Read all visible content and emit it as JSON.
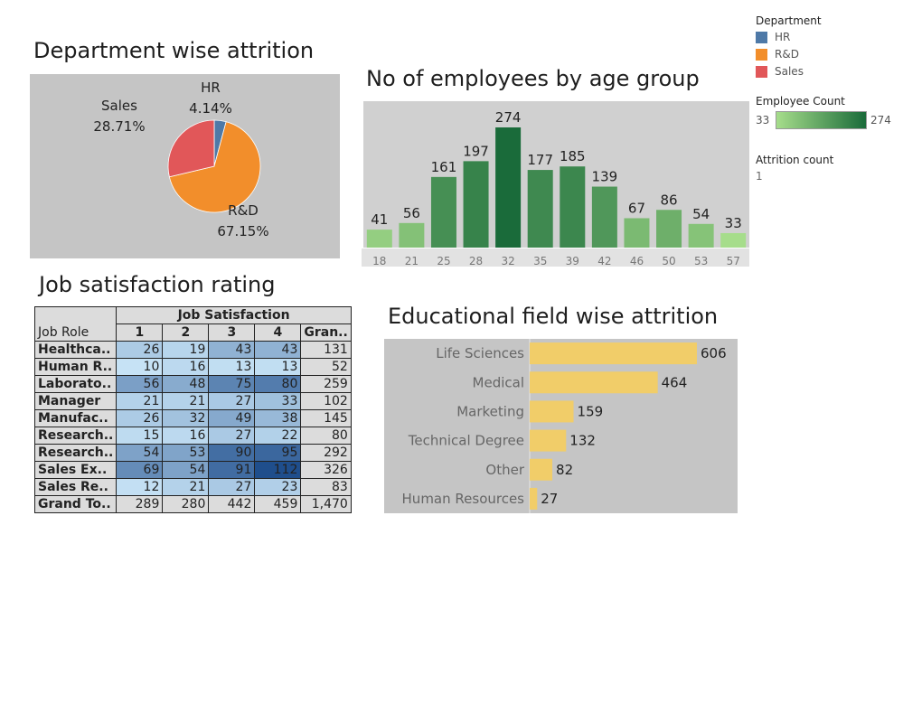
{
  "dashboard": {
    "dept_title": "Department wise attrition",
    "age_title": "No of employees by age group",
    "sat_title": "Job satisfaction rating",
    "edu_title": "Educational field wise attrition"
  },
  "legend": {
    "department": {
      "title": "Department",
      "items": [
        {
          "label": "HR",
          "color": "#4e79a7"
        },
        {
          "label": "R&D",
          "color": "#f28e2b"
        },
        {
          "label": "Sales",
          "color": "#e15759"
        }
      ]
    },
    "employee_count": {
      "title": "Employee Count",
      "min": "33",
      "max": "274"
    },
    "attrition_count": {
      "title": "Attrition count",
      "value": "1"
    }
  },
  "chart_data": [
    {
      "type": "pie",
      "title": "Department wise attrition",
      "categories": [
        "HR",
        "R&D",
        "Sales"
      ],
      "values": [
        4.14,
        67.15,
        28.71
      ],
      "labels": [
        "4.14%",
        "67.15%",
        "28.71%"
      ],
      "colors": [
        "#4e79a7",
        "#f28e2b",
        "#e15759"
      ]
    },
    {
      "type": "bar",
      "title": "No of employees by age group",
      "categories": [
        "18",
        "21",
        "25",
        "28",
        "32",
        "35",
        "39",
        "42",
        "46",
        "50",
        "53",
        "57"
      ],
      "values": [
        41,
        56,
        161,
        197,
        274,
        177,
        185,
        139,
        67,
        86,
        54,
        33
      ],
      "ylim": [
        0,
        274
      ],
      "color_scale": [
        "#a6dd8b",
        "#1a6b3a"
      ]
    },
    {
      "type": "table",
      "title": "Job satisfaction rating",
      "column_group_header": "Job Satisfaction",
      "row_header": "Job Role",
      "columns": [
        "1",
        "2",
        "3",
        "4",
        "Gran.."
      ],
      "rows": [
        {
          "label": "Healthca..",
          "cells": [
            "26",
            "19",
            "43",
            "43",
            "131"
          ]
        },
        {
          "label": "Human R..",
          "cells": [
            "10",
            "16",
            "13",
            "13",
            "52"
          ]
        },
        {
          "label": "Laborato..",
          "cells": [
            "56",
            "48",
            "75",
            "80",
            "259"
          ]
        },
        {
          "label": "Manager",
          "cells": [
            "21",
            "21",
            "27",
            "33",
            "102"
          ]
        },
        {
          "label": "Manufac..",
          "cells": [
            "26",
            "32",
            "49",
            "38",
            "145"
          ]
        },
        {
          "label": "Research..",
          "cells": [
            "15",
            "16",
            "27",
            "22",
            "80"
          ]
        },
        {
          "label": "Research..",
          "cells": [
            "54",
            "53",
            "90",
            "95",
            "292"
          ]
        },
        {
          "label": "Sales Ex..",
          "cells": [
            "69",
            "54",
            "91",
            "112",
            "326"
          ]
        },
        {
          "label": "Sales Re..",
          "cells": [
            "12",
            "21",
            "27",
            "23",
            "83"
          ]
        }
      ],
      "total_row": {
        "label": "Grand To..",
        "cells": [
          "289",
          "280",
          "442",
          "459",
          "1,470"
        ]
      },
      "color_scale": [
        "#c6e2f5",
        "#1f4e8c"
      ]
    },
    {
      "type": "bar",
      "orientation": "horizontal",
      "title": "Educational field wise attrition",
      "categories": [
        "Life Sciences",
        "Medical",
        "Marketing",
        "Technical Degree",
        "Other",
        "Human Resources"
      ],
      "values": [
        606,
        464,
        159,
        132,
        82,
        27
      ],
      "xlim": [
        0,
        650
      ],
      "color": "#f1cd69"
    }
  ]
}
